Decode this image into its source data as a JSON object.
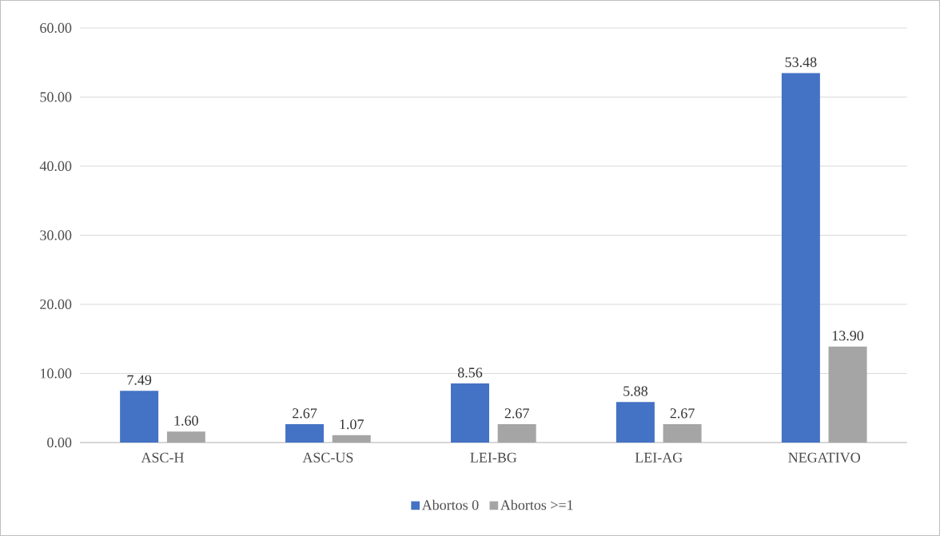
{
  "chart_data": {
    "type": "bar",
    "categories": [
      "ASC-H",
      "ASC-US",
      "LEI-BG",
      "LEI-AG",
      "NEGATIVO"
    ],
    "series": [
      {
        "name": "Abortos 0",
        "color": "#4472c4",
        "values": [
          7.49,
          2.67,
          8.56,
          5.88,
          53.48
        ],
        "value_labels": [
          "7.49",
          "2.67",
          "8.56",
          "5.88",
          "53.48"
        ]
      },
      {
        "name": "Abortos >=1",
        "color": "#a5a5a5",
        "values": [
          1.6,
          1.07,
          2.67,
          2.67,
          13.9
        ],
        "value_labels": [
          "1.60",
          "1.07",
          "2.67",
          "2.67",
          "13.90"
        ]
      }
    ],
    "ylim": [
      0,
      60
    ],
    "yticks": [
      {
        "value": 0,
        "label": "0.00"
      },
      {
        "value": 10,
        "label": "10.00"
      },
      {
        "value": 20,
        "label": "20.00"
      },
      {
        "value": 30,
        "label": "30.00"
      },
      {
        "value": 40,
        "label": "40.00"
      },
      {
        "value": 50,
        "label": "50.00"
      },
      {
        "value": 60,
        "label": "60.00"
      }
    ],
    "grid": "y",
    "legend": "bottom"
  }
}
